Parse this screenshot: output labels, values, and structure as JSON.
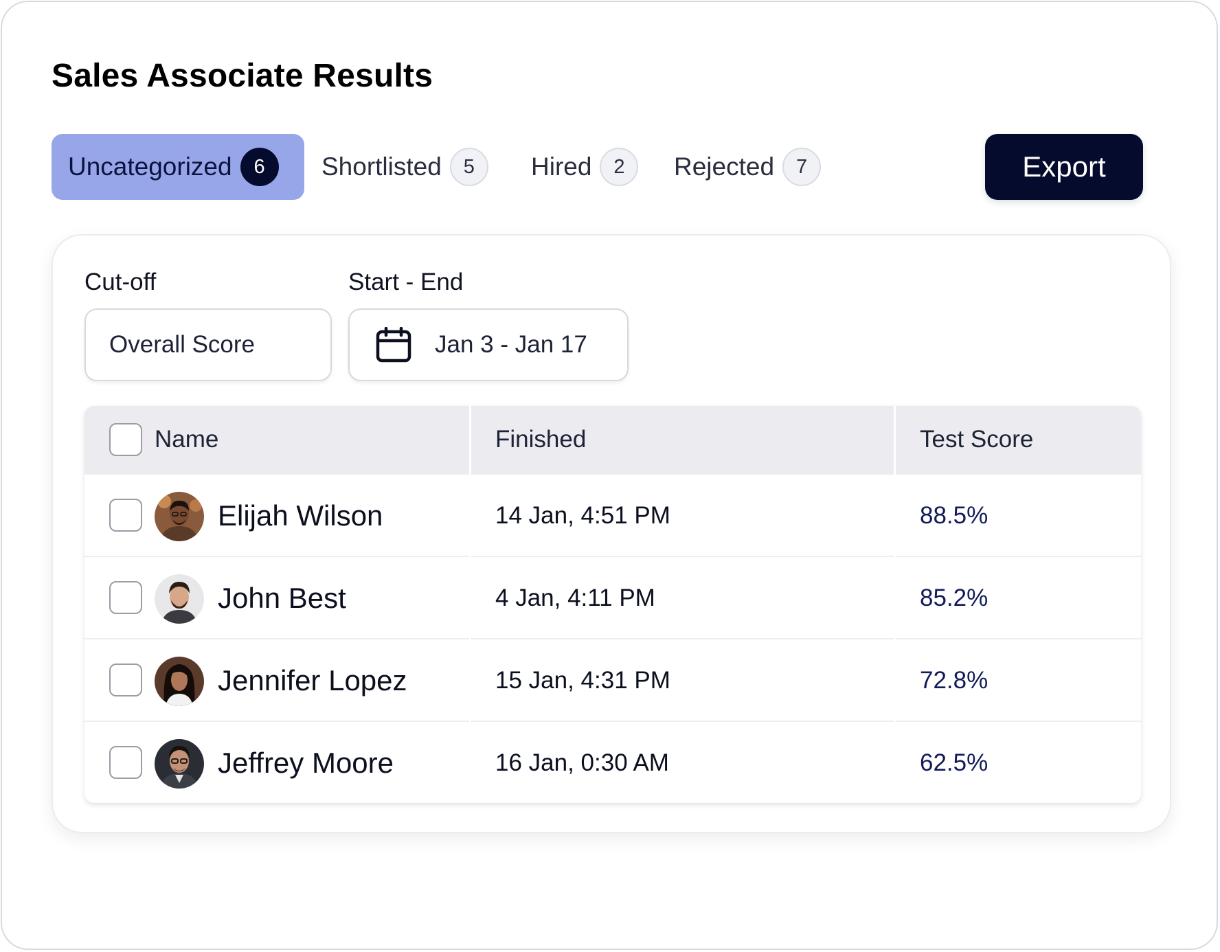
{
  "header": {
    "title": "Sales Associate Results"
  },
  "tabs": [
    {
      "label": "Uncategorized",
      "count": "6",
      "active": true
    },
    {
      "label": "Shortlisted",
      "count": "5",
      "active": false
    },
    {
      "label": "Hired",
      "count": "2",
      "active": false
    },
    {
      "label": "Rejected",
      "count": "7",
      "active": false
    }
  ],
  "toolbar": {
    "export_label": "Export"
  },
  "filters": {
    "cutoff_label": "Cut-off",
    "cutoff_value": "Overall Score",
    "range_label": "Start - End",
    "range_value": "Jan 3 - Jan 17"
  },
  "table": {
    "columns": [
      "Name",
      "Finished",
      "Test Score"
    ],
    "rows": [
      {
        "name": "Elijah Wilson",
        "finished": "14 Jan, 4:51 PM",
        "score": "88.5%"
      },
      {
        "name": "John Best",
        "finished": "4 Jan, 4:11 PM",
        "score": "85.2%"
      },
      {
        "name": "Jennifer Lopez",
        "finished": "15 Jan, 4:31 PM",
        "score": "72.8%"
      },
      {
        "name": "Jeffrey Moore",
        "finished": "16 Jan, 0:30 AM",
        "score": "62.5%"
      }
    ]
  },
  "colors": {
    "active_tab": "#97a6e8",
    "primary_dark": "#050b2c",
    "score_text": "#111a5a",
    "header_bg": "#ebebf0"
  },
  "icons": {
    "date_range": "calendar-icon"
  }
}
